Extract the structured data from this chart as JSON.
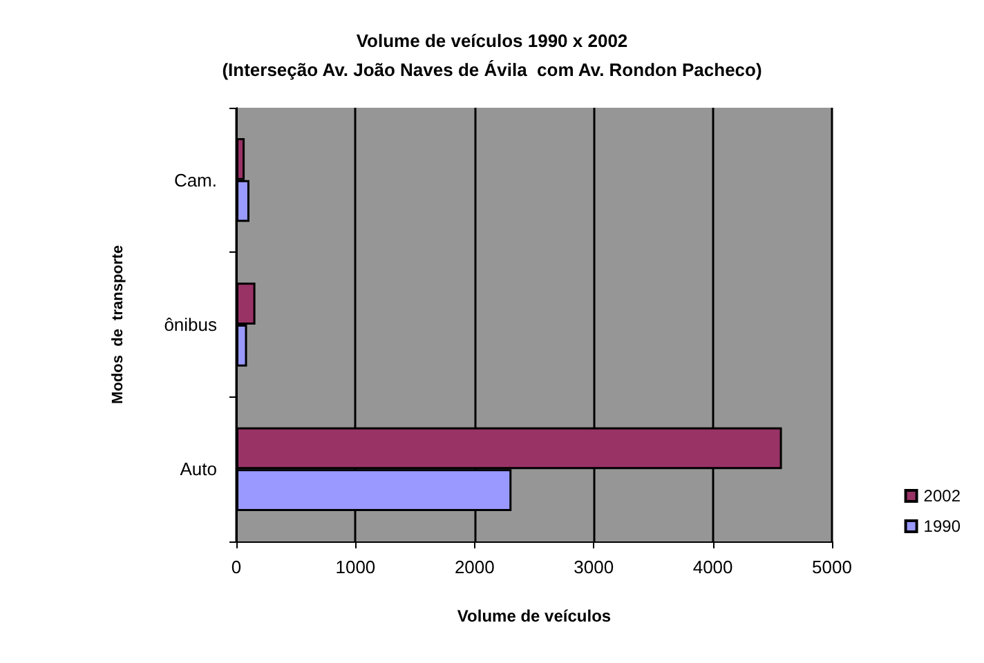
{
  "chart_data": {
    "type": "bar",
    "orientation": "horizontal",
    "title": "Volume de veículos 1990 x 2002",
    "subtitle": "(Interseção Av. João Naves de Ávila  com Av. Rondon Pacheco)",
    "xlabel": "Volume de veículos",
    "ylabel": "Modos  de  transporte",
    "categories": [
      "Cam.",
      "ônibus",
      "Auto"
    ],
    "series": [
      {
        "name": "2002",
        "color": "#993366",
        "values": [
          70,
          160,
          4580
        ]
      },
      {
        "name": "1990",
        "color": "#9999ff",
        "values": [
          110,
          90,
          2310
        ]
      }
    ],
    "xlim": [
      0,
      5000
    ],
    "xticks": [
      0,
      1000,
      2000,
      3000,
      4000,
      5000
    ],
    "grid": "x",
    "legend": "right"
  }
}
